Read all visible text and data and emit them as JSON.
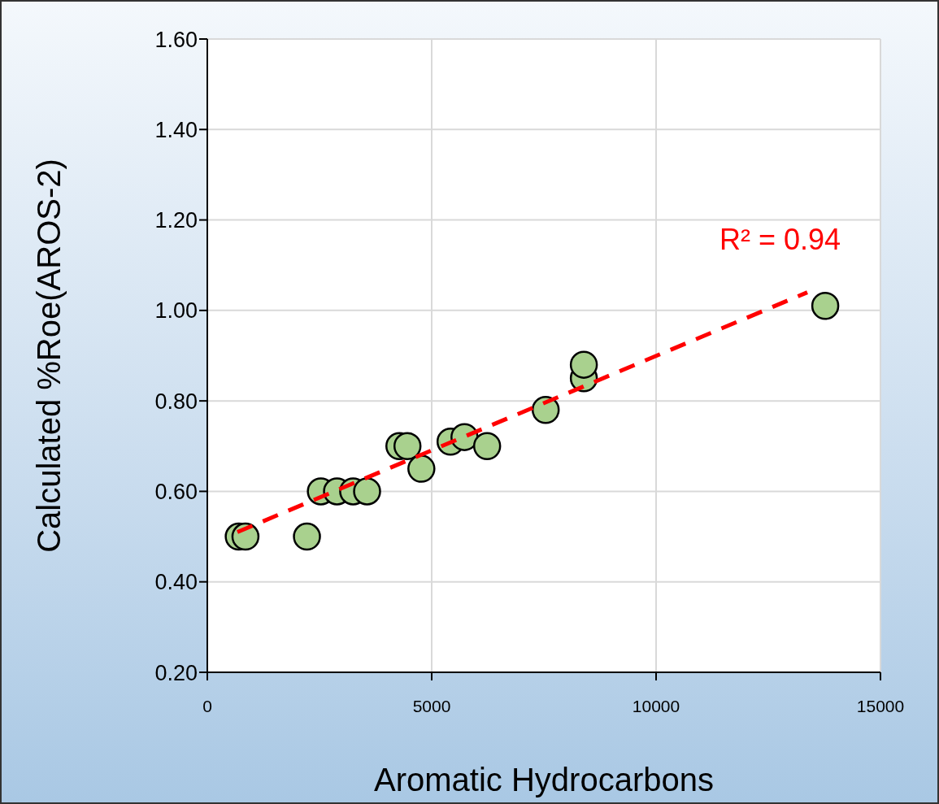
{
  "chart_data": {
    "type": "scatter",
    "xlabel": "Aromatic Hydrocarbons",
    "ylabel": "Calculated %Roe(AROS-2)",
    "xlim": [
      0,
      15000
    ],
    "xticks": [
      0,
      5000,
      10000,
      15000
    ],
    "ylim": [
      0.2,
      1.6
    ],
    "yticks": [
      {
        "value": 0.2,
        "label": "0.20"
      },
      {
        "value": 0.4,
        "label": "0.40"
      },
      {
        "value": 0.6,
        "label": "0.60"
      },
      {
        "value": 0.8,
        "label": "0.80"
      },
      {
        "value": 1.0,
        "label": "1.00"
      },
      {
        "value": 1.2,
        "label": "1.20"
      },
      {
        "value": 1.4,
        "label": "1.40"
      },
      {
        "value": 1.6,
        "label": "1.60"
      }
    ],
    "grid": true,
    "annotations": [
      "R² = 0.94"
    ],
    "series": [
      {
        "color": "#a9d18e",
        "marker": "circle",
        "x": [
          700,
          850,
          2220,
          2530,
          2890,
          3250,
          3560,
          4280,
          4460,
          4770,
          5420,
          5730,
          6235,
          7540,
          8390,
          8390,
          13770
        ],
        "values": [
          0.5,
          0.5,
          0.5,
          0.6,
          0.6,
          0.6,
          0.6,
          0.7,
          0.7,
          0.65,
          0.71,
          0.72,
          0.7,
          0.78,
          0.85,
          0.88,
          1.01
        ]
      },
      {
        "type": "line",
        "color": "#ff0000",
        "line_style": "dashed",
        "marker": "none",
        "x": [
          670,
          13370
        ],
        "values": [
          0.51,
          1.04
        ]
      }
    ]
  }
}
